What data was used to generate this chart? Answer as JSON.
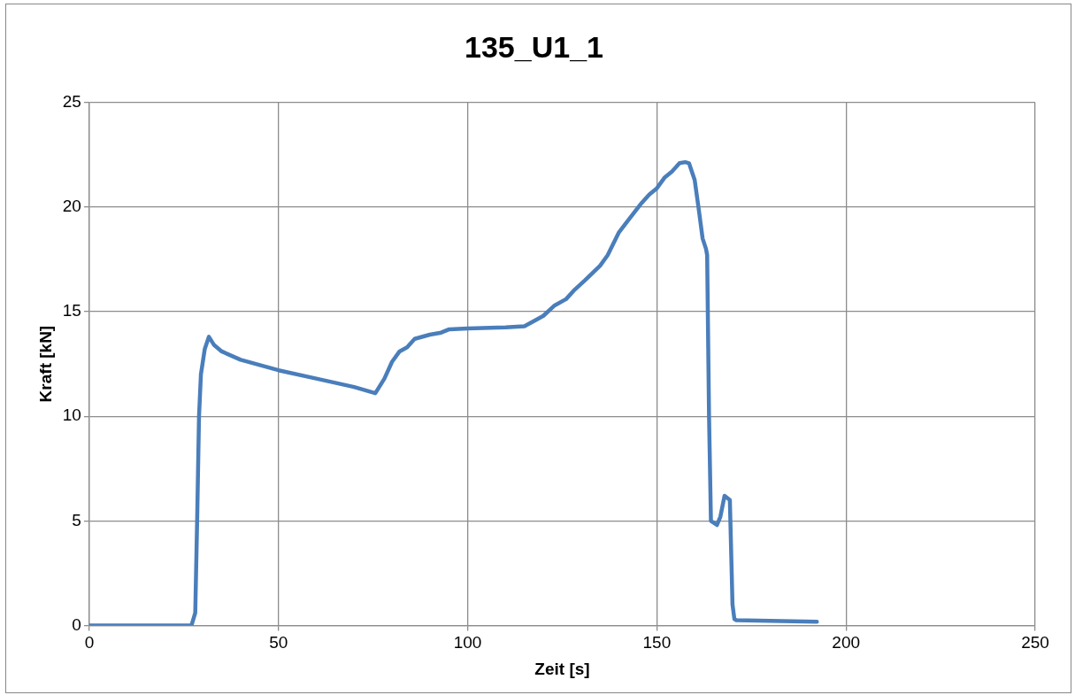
{
  "chart_data": {
    "type": "line",
    "title": "135_U1_1",
    "xlabel": "Zeit [s]",
    "ylabel": "Kraft [kN]",
    "xlim": [
      0,
      250
    ],
    "xticks": [
      0,
      50,
      100,
      150,
      200,
      250
    ],
    "ylim": [
      0,
      25
    ],
    "yticks": [
      0,
      5,
      10,
      15,
      20,
      25
    ],
    "grid": true,
    "legend": false,
    "marker": "none",
    "line_style": "solid",
    "series": [
      {
        "color": "#4a7ebb",
        "x": [
          0,
          27,
          27.5,
          28,
          28.5,
          29,
          29.5,
          30.5,
          31.6,
          33,
          35,
          40,
          50,
          60,
          70,
          75.6,
          78,
          80,
          82,
          84,
          86,
          90,
          93,
          95,
          100,
          110,
          115,
          118,
          120,
          123,
          126,
          128,
          131,
          135,
          137,
          140,
          143,
          146,
          148,
          150,
          152,
          154,
          156,
          157.5,
          158.5,
          160,
          161,
          162.1,
          163,
          163.3,
          163.8,
          164.3,
          165.9,
          166.8,
          167.9,
          169.3,
          170,
          170.5,
          171,
          180,
          192.3
        ],
        "values": [
          0,
          0,
          0.3,
          0.6,
          5,
          10,
          12,
          13.2,
          13.8,
          13.4,
          13.1,
          12.7,
          12.2,
          11.8,
          11.4,
          11.1,
          11.8,
          12.6,
          13.1,
          13.3,
          13.7,
          13.9,
          14,
          14.15,
          14.2,
          14.25,
          14.3,
          14.6,
          14.8,
          15.3,
          15.6,
          16,
          16.5,
          17.2,
          17.7,
          18.8,
          19.5,
          20.2,
          20.6,
          20.9,
          21.4,
          21.7,
          22.1,
          22.15,
          22.1,
          21.3,
          20,
          18.5,
          18,
          17.7,
          10,
          5,
          4.8,
          5.2,
          6.2,
          6,
          1,
          0.3,
          0.25,
          0.22,
          0.18
        ]
      }
    ]
  }
}
